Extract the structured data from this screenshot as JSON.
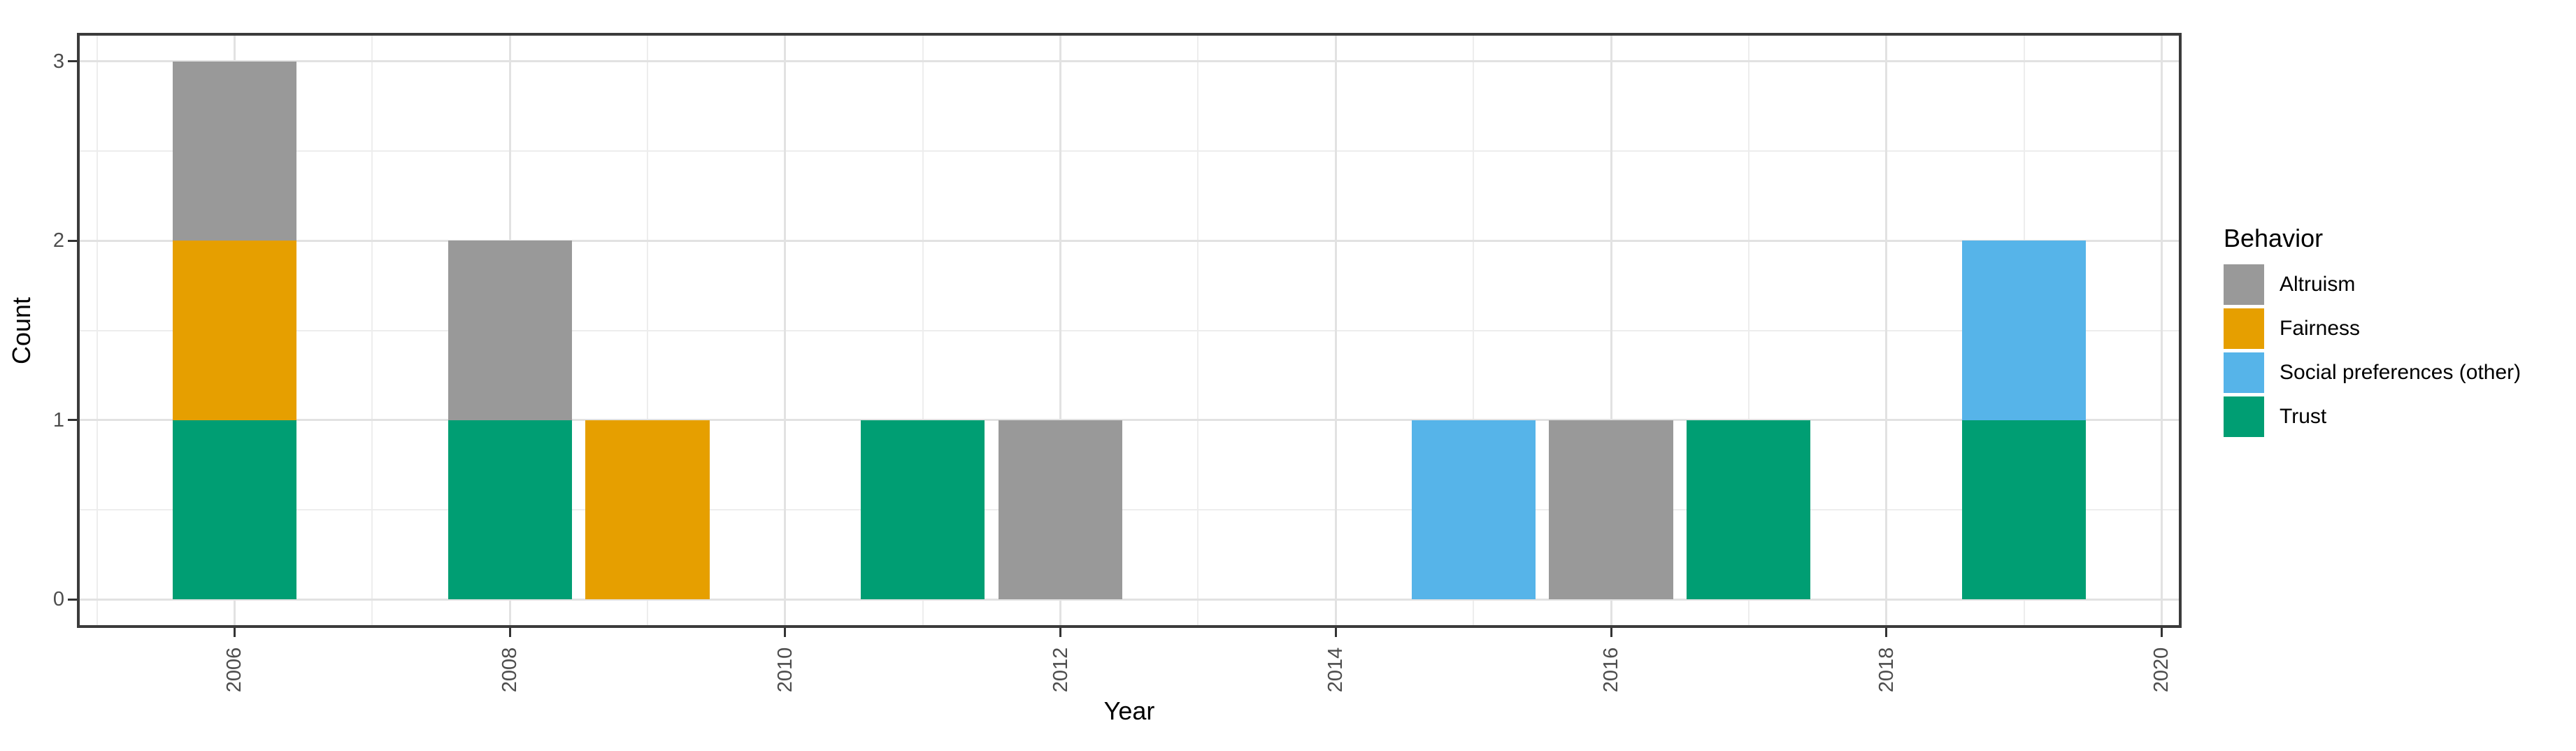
{
  "chart_data": {
    "type": "bar",
    "stacked": true,
    "title": "",
    "xlabel": "Year",
    "ylabel": "Count",
    "xlim": [
      2004.855,
      2020.145
    ],
    "ylim": [
      -0.158,
      3.158
    ],
    "x_major_ticks": [
      2006,
      2008,
      2010,
      2012,
      2014,
      2016,
      2018,
      2020
    ],
    "x_tick_labels": [
      "2006",
      "2008",
      "2010",
      "2012",
      "2014",
      "2016",
      "2018",
      "2020"
    ],
    "x_minor_ticks": [
      2005,
      2007,
      2009,
      2011,
      2013,
      2015,
      2017,
      2019
    ],
    "y_major_ticks": [
      0,
      1,
      2,
      3
    ],
    "y_tick_labels": [
      "0",
      "1",
      "2",
      "3"
    ],
    "y_minor_ticks": [
      0.5,
      1.5,
      2.5
    ],
    "bar_width_years": 0.9,
    "grid": true,
    "legend": {
      "title": "Behavior",
      "position": "right",
      "entries": [
        {
          "label": "Altruism",
          "color": "#999999"
        },
        {
          "label": "Fairness",
          "color": "#E69F00"
        },
        {
          "label": "Social preferences (other)",
          "color": "#56B4E9"
        },
        {
          "label": "Trust",
          "color": "#009E73"
        }
      ]
    },
    "bars": [
      {
        "year": 2006,
        "segments": [
          {
            "behavior": "Trust",
            "count": 1
          },
          {
            "behavior": "Fairness",
            "count": 1
          },
          {
            "behavior": "Altruism",
            "count": 1
          }
        ]
      },
      {
        "year": 2008,
        "segments": [
          {
            "behavior": "Trust",
            "count": 1
          },
          {
            "behavior": "Altruism",
            "count": 1
          }
        ]
      },
      {
        "year": 2009,
        "segments": [
          {
            "behavior": "Fairness",
            "count": 1
          }
        ]
      },
      {
        "year": 2011,
        "segments": [
          {
            "behavior": "Trust",
            "count": 1
          }
        ]
      },
      {
        "year": 2012,
        "segments": [
          {
            "behavior": "Altruism",
            "count": 1
          }
        ]
      },
      {
        "year": 2015,
        "segments": [
          {
            "behavior": "Social preferences (other)",
            "count": 1
          }
        ]
      },
      {
        "year": 2016,
        "segments": [
          {
            "behavior": "Altruism",
            "count": 1
          }
        ]
      },
      {
        "year": 2017,
        "segments": [
          {
            "behavior": "Trust",
            "count": 1
          }
        ]
      },
      {
        "year": 2019,
        "segments": [
          {
            "behavior": "Trust",
            "count": 1
          },
          {
            "behavior": "Social preferences (other)",
            "count": 1
          }
        ]
      }
    ]
  },
  "colors": {
    "background": "#FFFFFF",
    "panel_border": "#3B3B3B",
    "grid_major": "#E2E2E2",
    "grid_minor": "#EDEDED",
    "tick_mark": "#333333",
    "axis_text": "#4D4D4D",
    "axis_title": "#000000",
    "legend_text": "#000000"
  }
}
